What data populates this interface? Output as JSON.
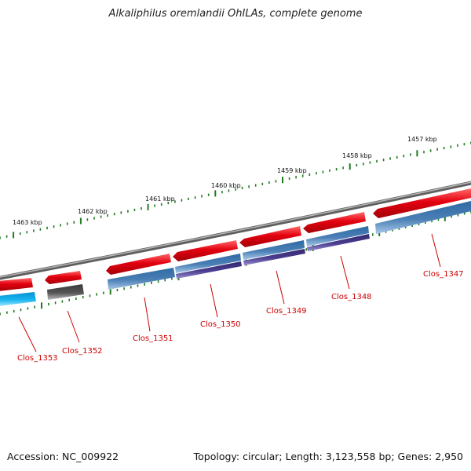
{
  "title": "Alkaliphilus oremlandii OhILAs, complete genome",
  "accession": "Accession: NC_009922",
  "summary": "Topology: circular; Length: 3,123,558 bp; Genes: 2,950",
  "colors": {
    "backbone": "#8c8c8c",
    "forward_gene": "#e3000f",
    "reverse_gene_blue": "#4a7fb5",
    "reverse_gene_purple": "#4a3d8f",
    "reverse_gene_cyan": "#19b5f0",
    "reverse_gene_gray": "#555555",
    "tick_green": "#1f7a1f",
    "label_red": "#cc0000"
  },
  "kbp_ticks": [
    "1463 kbp",
    "1462 kbp",
    "1461 kbp",
    "1460 kbp",
    "1459 kbp",
    "1458 kbp",
    "1457 kbp"
  ],
  "genes": [
    {
      "label": "Clos_1353"
    },
    {
      "label": "Clos_1352"
    },
    {
      "label": "Clos_1351"
    },
    {
      "label": "Clos_1350"
    },
    {
      "label": "Clos_1349"
    },
    {
      "label": "Clos_1348"
    },
    {
      "label": "Clos_1347"
    }
  ]
}
